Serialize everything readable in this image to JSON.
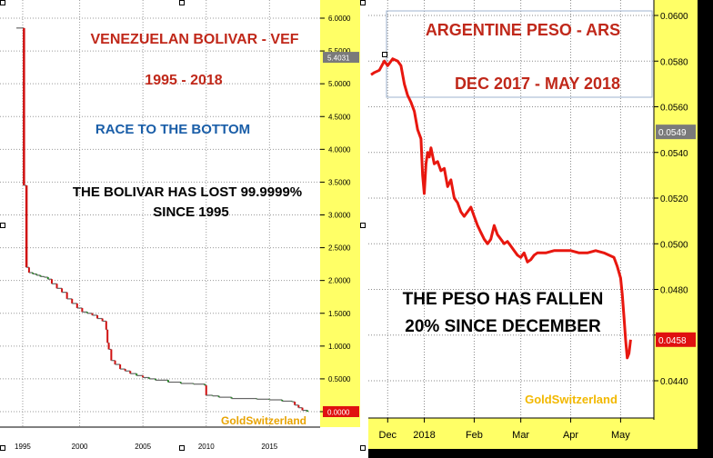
{
  "chart_data": [
    {
      "type": "line",
      "title": "VENEZUELAN BOLIVAR - VEF",
      "subtitle": "1995 - 2018",
      "annotations": [
        "RACE TO THE BOTTOM",
        "THE BOLIVAR HAS LOST 99.9999%",
        "SINCE 1995"
      ],
      "watermark": "GoldSwitzerland",
      "xlabel": "",
      "ylabel": "",
      "xlim": [
        1995,
        2019
      ],
      "ylim": [
        0,
        6.2
      ],
      "x_ticks": [
        "1995",
        "2000",
        "2005",
        "2010",
        "2015"
      ],
      "x_tick_values": [
        1995.5,
        2000,
        2005,
        2010,
        2015
      ],
      "y_ticks": [
        "0.0000",
        "0.5000",
        "1.0000",
        "1.5000",
        "2.0000",
        "2.5000",
        "3.0000",
        "3.5000",
        "4.0000",
        "4.5000",
        "5.0000",
        "5.5000",
        "6.0000"
      ],
      "y_tick_values": [
        0,
        0.5,
        1.0,
        1.5,
        2.0,
        2.5,
        3.0,
        3.5,
        4.0,
        4.5,
        5.0,
        5.5,
        6.0
      ],
      "price_labels": [
        {
          "text": "5.4031",
          "value": 5.4031
        },
        {
          "text": "0.0000",
          "value": 0.0
        }
      ],
      "series": [
        {
          "name": "VEF",
          "x": [
            1995.0,
            1995.5,
            1995.6,
            1995.7,
            1995.8,
            1996.0,
            1996.3,
            1996.6,
            1996.9,
            1997.2,
            1997.5,
            1997.8,
            1998.2,
            1998.6,
            1999.0,
            1999.4,
            1999.8,
            2000.2,
            2000.6,
            2001.0,
            2001.4,
            2001.8,
            2002.1,
            2002.2,
            2002.3,
            2002.5,
            2002.8,
            2003.2,
            2003.6,
            2004.0,
            2004.5,
            2005.0,
            2005.5,
            2006,
            2007,
            2008,
            2009,
            2009.9,
            2010.0,
            2010.5,
            2011,
            2012,
            2013,
            2014,
            2015,
            2016,
            2016.8,
            2017,
            2017.3,
            2017.6,
            2018.0
          ],
          "y": [
            5.85,
            5.85,
            3.45,
            3.45,
            2.2,
            2.12,
            2.1,
            2.08,
            2.06,
            2.05,
            2.02,
            1.95,
            1.88,
            1.82,
            1.72,
            1.65,
            1.58,
            1.52,
            1.5,
            1.47,
            1.42,
            1.38,
            1.25,
            1.05,
            0.95,
            0.78,
            0.72,
            0.65,
            0.62,
            0.58,
            0.55,
            0.52,
            0.5,
            0.48,
            0.45,
            0.43,
            0.42,
            0.4,
            0.25,
            0.24,
            0.22,
            0.2,
            0.2,
            0.19,
            0.18,
            0.16,
            0.15,
            0.1,
            0.06,
            0.02,
            0.0
          ]
        }
      ]
    },
    {
      "type": "line",
      "title": "ARGENTINE PESO - ARS",
      "subtitle": "DEC 2017 - MAY 2018",
      "annotations": [
        "THE PESO HAS FALLEN",
        "20% SINCE DECEMBER"
      ],
      "watermark": "GoldSwitzerland",
      "xlabel": "",
      "ylabel": "",
      "xlim": [
        0,
        170
      ],
      "ylim": [
        0.043,
        0.0603
      ],
      "x_ticks": [
        "Dec",
        "2018",
        "Feb",
        "Mar",
        "Apr",
        "May"
      ],
      "x_tick_values": [
        10,
        32,
        62,
        90,
        120,
        150
      ],
      "y_ticks": [
        "0.0440",
        "0.0460",
        "0.0480",
        "0.0500",
        "0.0520",
        "0.0540",
        "0.0560",
        "0.0580",
        "0.0600"
      ],
      "y_tick_values": [
        0.044,
        0.046,
        0.048,
        0.05,
        0.052,
        0.054,
        0.056,
        0.058,
        0.06
      ],
      "price_labels": [
        {
          "text": "0.0549",
          "value": 0.0549
        },
        {
          "text": "0.0458",
          "value": 0.0458
        }
      ],
      "series": [
        {
          "name": "ARS",
          "x": [
            0,
            2,
            5,
            8,
            10,
            13,
            16,
            18,
            20,
            22,
            24,
            26,
            28,
            30,
            31,
            32,
            33,
            34,
            35,
            36,
            38,
            40,
            42,
            44,
            46,
            48,
            50,
            52,
            54,
            56,
            58,
            60,
            62,
            64,
            66,
            68,
            70,
            72,
            74,
            76,
            78,
            80,
            82,
            84,
            86,
            88,
            90,
            92,
            94,
            96,
            98,
            100,
            105,
            110,
            115,
            120,
            125,
            130,
            135,
            140,
            143,
            146,
            148,
            150,
            151,
            152,
            153,
            154,
            155,
            156
          ],
          "y": [
            0.0574,
            0.0575,
            0.0576,
            0.058,
            0.0578,
            0.0581,
            0.058,
            0.0578,
            0.057,
            0.0565,
            0.0562,
            0.0558,
            0.055,
            0.0546,
            0.053,
            0.0522,
            0.0535,
            0.054,
            0.0538,
            0.0542,
            0.0535,
            0.0536,
            0.0532,
            0.0533,
            0.0525,
            0.0528,
            0.052,
            0.0518,
            0.0514,
            0.0512,
            0.0514,
            0.0516,
            0.0512,
            0.0508,
            0.0505,
            0.0502,
            0.05,
            0.0502,
            0.0508,
            0.0504,
            0.0502,
            0.05,
            0.0501,
            0.0499,
            0.0497,
            0.0495,
            0.0494,
            0.0496,
            0.0492,
            0.0493,
            0.0495,
            0.0496,
            0.0496,
            0.0497,
            0.0497,
            0.0497,
            0.0496,
            0.0496,
            0.0497,
            0.0496,
            0.0495,
            0.0494,
            0.049,
            0.0485,
            0.0478,
            0.0468,
            0.0458,
            0.045,
            0.0452,
            0.0458
          ]
        }
      ]
    }
  ]
}
